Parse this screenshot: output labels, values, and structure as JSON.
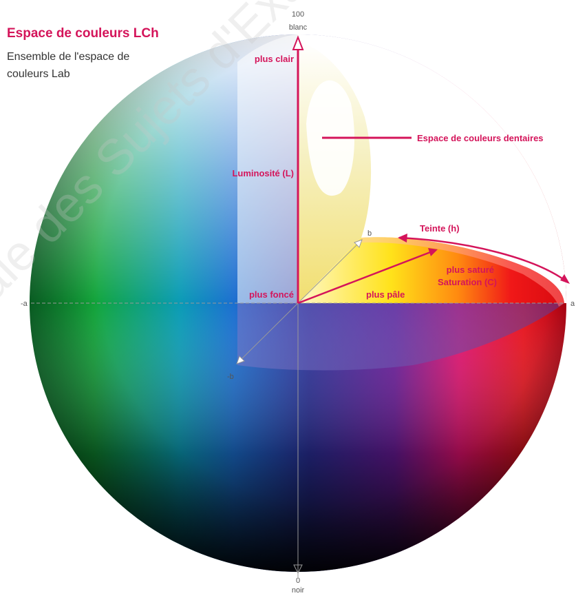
{
  "header": {
    "title": "Espace de couleurs LCh",
    "subtitle": "Ensemble de l'espace de couleurs Lab"
  },
  "axes": {
    "top_value": "100",
    "top_label": "blanc",
    "bottom_value": "0",
    "bottom_label": "noir",
    "neg_a": "-a",
    "pos_a": "a",
    "pos_b": "b",
    "neg_b": "-b"
  },
  "labels": {
    "lighter": "plus clair",
    "darker": "plus foncé",
    "luminosity": "Luminosité (L)",
    "dental_space": "Espace de couleurs dentaires",
    "hue": "Teinte (h)",
    "more_saturated": "plus saturé",
    "saturation": "Saturation (C)",
    "paler": "plus pâle"
  },
  "watermark": "ale des Sujets d'Exame",
  "colors": {
    "accent": "#d4145a",
    "axis": "#999999"
  }
}
